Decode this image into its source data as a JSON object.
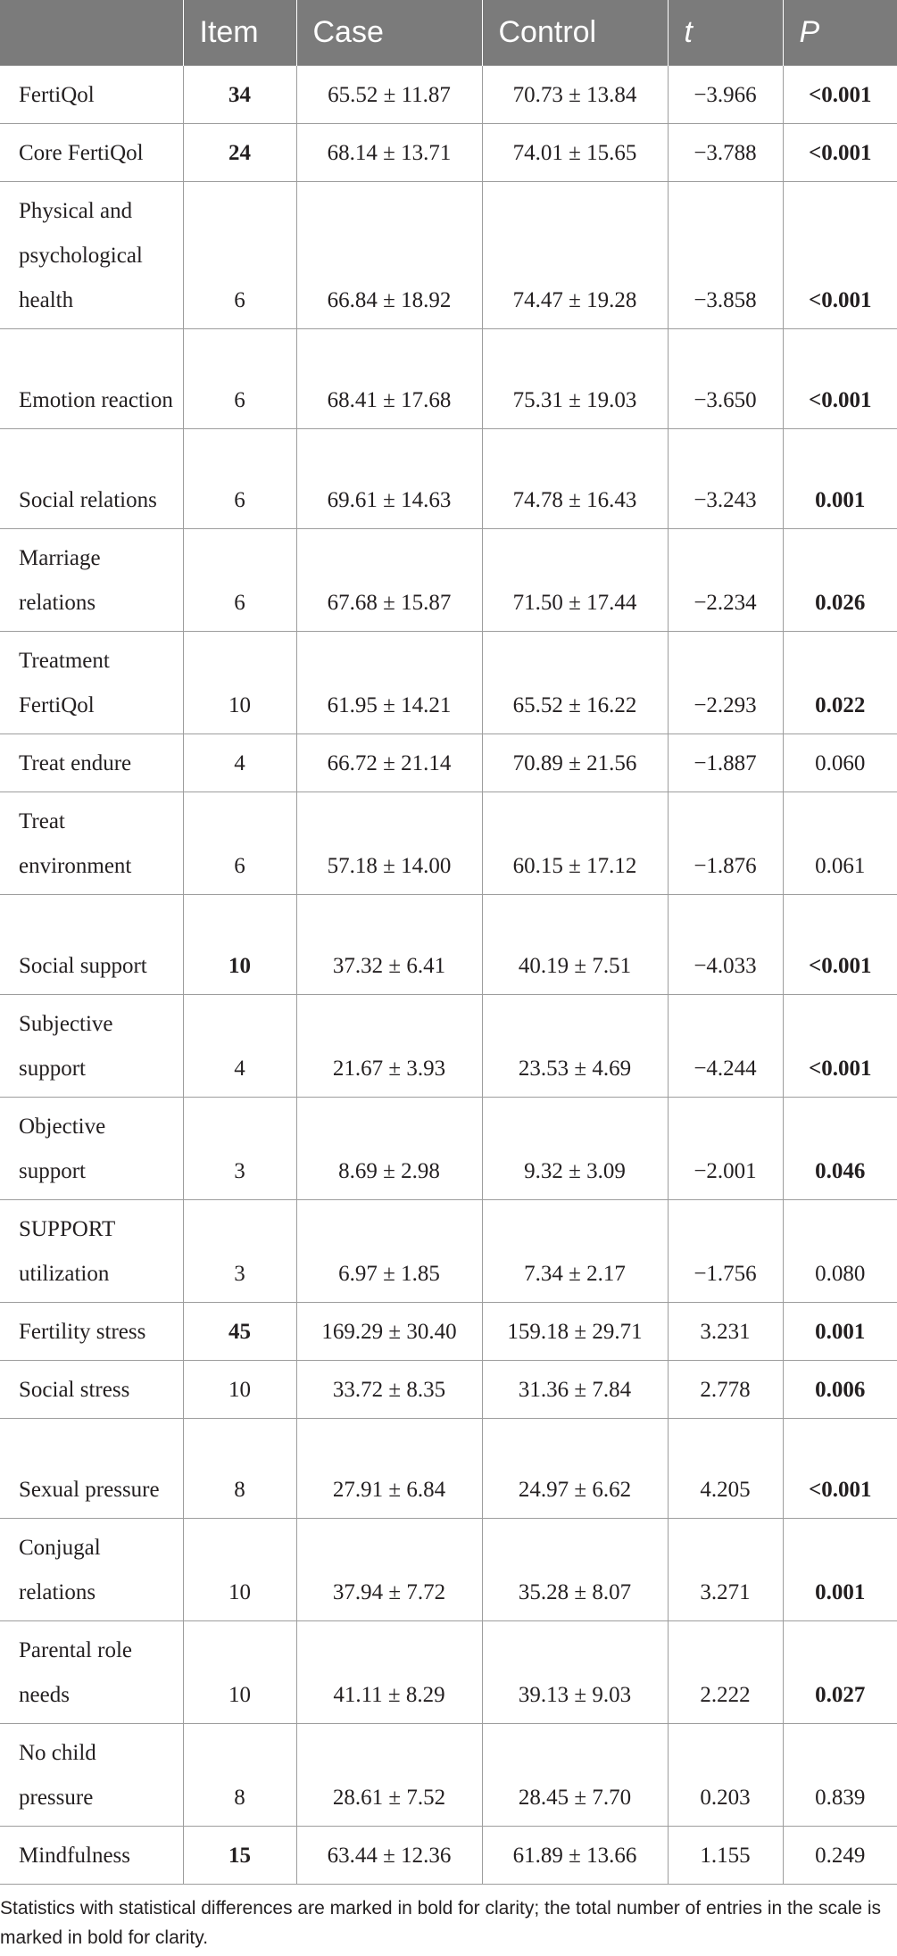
{
  "table": {
    "headers": [
      "",
      "Item",
      "Case",
      "Control",
      "t",
      "P"
    ],
    "rows": [
      {
        "name": "FertiQol",
        "item": "34",
        "item_bold": true,
        "case": "65.52 ± 11.87",
        "control": "70.73 ± 13.84",
        "t": "−3.966",
        "p": "<0.001",
        "p_bold": true,
        "lines": 1
      },
      {
        "name": "Core FertiQol",
        "item": "24",
        "item_bold": true,
        "case": "68.14 ± 13.71",
        "control": "74.01 ± 15.65",
        "t": "−3.788",
        "p": "<0.001",
        "p_bold": true,
        "lines": 1
      },
      {
        "name": "Physical and psychological health",
        "item": "6",
        "item_bold": false,
        "case": "66.84 ± 18.92",
        "control": "74.47 ± 19.28",
        "t": "−3.858",
        "p": "<0.001",
        "p_bold": true,
        "lines": 3
      },
      {
        "name": "Emotion reaction",
        "item": "6",
        "item_bold": false,
        "case": "68.41 ± 17.68",
        "control": "75.31 ± 19.03",
        "t": "−3.650",
        "p": "<0.001",
        "p_bold": true,
        "lines": 2
      },
      {
        "name": "Social relations",
        "item": "6",
        "item_bold": false,
        "case": "69.61 ± 14.63",
        "control": "74.78 ± 16.43",
        "t": "−3.243",
        "p": "0.001",
        "p_bold": true,
        "lines": 2
      },
      {
        "name": "Marriage relations",
        "item": "6",
        "item_bold": false,
        "case": "67.68 ± 15.87",
        "control": "71.50 ± 17.44",
        "t": "−2.234",
        "p": "0.026",
        "p_bold": true,
        "lines": 2
      },
      {
        "name": "Treatment FertiQol",
        "item": "10",
        "item_bold": false,
        "case": "61.95 ± 14.21",
        "control": "65.52 ± 16.22",
        "t": "−2.293",
        "p": "0.022",
        "p_bold": true,
        "lines": 2
      },
      {
        "name": "Treat endure",
        "item": "4",
        "item_bold": false,
        "case": "66.72 ± 21.14",
        "control": "70.89 ± 21.56",
        "t": "−1.887",
        "p": "0.060",
        "p_bold": false,
        "lines": 1
      },
      {
        "name": "Treat environment",
        "item": "6",
        "item_bold": false,
        "case": "57.18 ± 14.00",
        "control": "60.15 ± 17.12",
        "t": "−1.876",
        "p": "0.061",
        "p_bold": false,
        "lines": 2
      },
      {
        "name": "Social support",
        "item": "10",
        "item_bold": true,
        "case": "37.32 ± 6.41",
        "control": "40.19 ± 7.51",
        "t": "−4.033",
        "p": "<0.001",
        "p_bold": true,
        "lines": 2
      },
      {
        "name": "Subjective support",
        "item": "4",
        "item_bold": false,
        "case": "21.67 ± 3.93",
        "control": "23.53 ± 4.69",
        "t": "−4.244",
        "p": "<0.001",
        "p_bold": true,
        "lines": 2
      },
      {
        "name": "Objective support",
        "item": "3",
        "item_bold": false,
        "case": "8.69 ± 2.98",
        "control": "9.32 ± 3.09",
        "t": "−2.001",
        "p": "0.046",
        "p_bold": true,
        "lines": 2
      },
      {
        "name": "SUPPORT utilization",
        "item": "3",
        "item_bold": false,
        "case": "6.97 ± 1.85",
        "control": "7.34 ± 2.17",
        "t": "−1.756",
        "p": "0.080",
        "p_bold": false,
        "lines": 2
      },
      {
        "name": "Fertility stress",
        "item": "45",
        "item_bold": true,
        "case": "169.29 ± 30.40",
        "control": "159.18 ± 29.71",
        "t": "3.231",
        "p": "0.001",
        "p_bold": true,
        "lines": 1
      },
      {
        "name": "Social stress",
        "item": "10",
        "item_bold": false,
        "case": "33.72 ± 8.35",
        "control": "31.36 ± 7.84",
        "t": "2.778",
        "p": "0.006",
        "p_bold": true,
        "lines": 1
      },
      {
        "name": "Sexual pressure",
        "item": "8",
        "item_bold": false,
        "case": "27.91 ± 6.84",
        "control": "24.97 ± 6.62",
        "t": "4.205",
        "p": "<0.001",
        "p_bold": true,
        "lines": 2
      },
      {
        "name": "Conjugal relations",
        "item": "10",
        "item_bold": false,
        "case": "37.94 ± 7.72",
        "control": "35.28 ± 8.07",
        "t": "3.271",
        "p": "0.001",
        "p_bold": true,
        "lines": 2
      },
      {
        "name": "Parental role needs",
        "item": "10",
        "item_bold": false,
        "case": "41.11 ± 8.29",
        "control": "39.13 ± 9.03",
        "t": "2.222",
        "p": "0.027",
        "p_bold": true,
        "lines": 2
      },
      {
        "name": "No child pressure",
        "item": "8",
        "item_bold": false,
        "case": "28.61 ± 7.52",
        "control": "28.45 ± 7.70",
        "t": "0.203",
        "p": "0.839",
        "p_bold": false,
        "lines": 2
      },
      {
        "name": "Mindfulness",
        "item": "15",
        "item_bold": true,
        "case": "63.44 ± 12.36",
        "control": "61.89 ± 13.66",
        "t": "1.155",
        "p": "0.249",
        "p_bold": false,
        "lines": 1
      }
    ]
  },
  "footnote": "Statistics with statistical differences are marked in bold for clarity; the total number of entries in the scale is marked in bold for clarity.",
  "colors": {
    "header_bg": "#7b7b7b",
    "header_text": "#ffffff",
    "border": "#9d9d9d",
    "text": "#231f20"
  }
}
